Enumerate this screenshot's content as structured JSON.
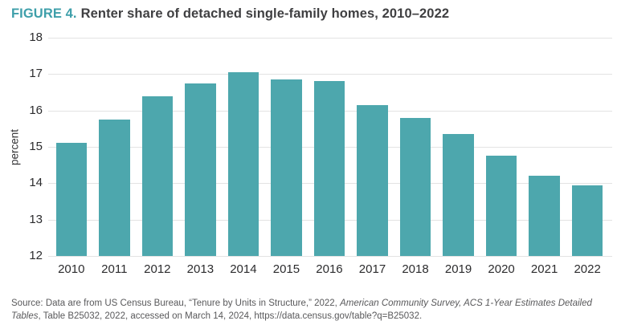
{
  "figure": {
    "label": "FIGURE 4.",
    "title": "Renter share of detached single-family homes, 2010–2022"
  },
  "chart_data": {
    "type": "bar",
    "categories": [
      "2010",
      "2011",
      "2012",
      "2013",
      "2014",
      "2015",
      "2016",
      "2017",
      "2018",
      "2019",
      "2020",
      "2021",
      "2022"
    ],
    "values": [
      15.1,
      15.75,
      16.4,
      16.75,
      17.05,
      16.85,
      16.8,
      16.15,
      15.8,
      15.35,
      14.75,
      14.2,
      13.95
    ],
    "title": "Renter share of detached single-family homes, 2010–2022",
    "xlabel": "",
    "ylabel": "percent",
    "ylim": [
      12,
      18
    ],
    "yticks": [
      18,
      17,
      16,
      15,
      14,
      13,
      12
    ],
    "grid": true,
    "legend": "none",
    "bar_color": "#4da7ad"
  },
  "source": {
    "lines": [
      [
        {
          "text": "Source: Data are from US Census Bureau, “Tenure by Units in Structure,” 2022, ",
          "italic": false
        },
        {
          "text": "American Community Survey, ACS 1-Year Estimates Detailed",
          "italic": true
        }
      ],
      [
        {
          "text": "Tables",
          "italic": true
        },
        {
          "text": ", Table B25032, 2022, accessed on March 14, 2024, https://data.census.gov/table?q=B25032.",
          "italic": false
        }
      ]
    ]
  },
  "colors": {
    "accent": "#3e9faa",
    "bar": "#4da7ad",
    "grid": "#e3e3e3",
    "title_text": "#3f3f41",
    "tick_text": "#2c2c2e",
    "source_text": "#59595b"
  }
}
